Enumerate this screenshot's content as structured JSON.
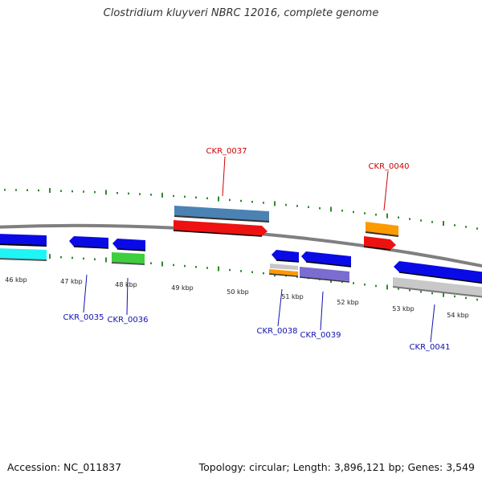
{
  "title": "Clostridium kluyveri NBRC 12016, complete genome",
  "footer": {
    "accession": "Accession: NC_011837",
    "stats": "Topology: circular; Length: 3,896,121 bp; Genes: 3,549"
  },
  "colors": {
    "backbone": "#7f7f7f",
    "tick": "#2e8b2e",
    "label_forward": "#cc0000",
    "label_reverse": "#1010b0",
    "blue": "#0a0ae6",
    "cyan": "#1ff5f5",
    "green": "#3ecf3e",
    "steelblue": "#4a82b4",
    "red": "#ee1111",
    "orange": "#ff9900",
    "silver": "#c8c8c8",
    "purple": "#7a6cd0"
  },
  "scale_labels": [
    "46 kbp",
    "47 kbp",
    "48 kbp",
    "49 kbp",
    "50 kbp",
    "51 kbp",
    "52 kbp",
    "53 kbp",
    "54 kbp"
  ],
  "gene_labels": [
    {
      "text": "CKR_0037",
      "strand": "forward"
    },
    {
      "text": "CKR_0040",
      "strand": "forward"
    },
    {
      "text": "CKR_0035",
      "strand": "reverse"
    },
    {
      "text": "CKR_0036",
      "strand": "reverse"
    },
    {
      "text": "CKR_0038",
      "strand": "reverse"
    },
    {
      "text": "CKR_0039",
      "strand": "reverse"
    },
    {
      "text": "CKR_0041",
      "strand": "reverse"
    }
  ]
}
